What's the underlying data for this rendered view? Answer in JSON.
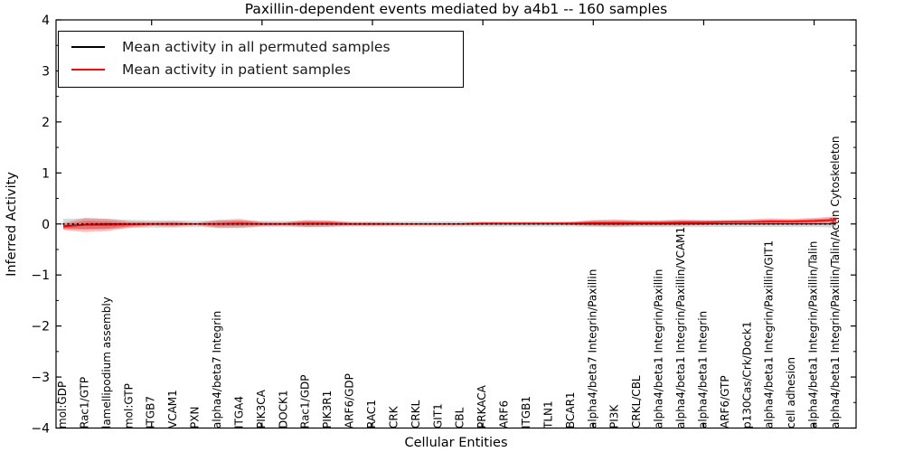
{
  "figure": {
    "title": "Paxillin-dependent events mediated by a4b1 -- 160 samples",
    "xlabel": "Cellular Entities",
    "ylabel": "Inferred Activity"
  },
  "legend": {
    "items": [
      {
        "label": "Mean activity in all permuted samples",
        "color": "#000000"
      },
      {
        "label": "Mean activity in patient samples",
        "color": "#ff0000"
      }
    ]
  },
  "chart_data": {
    "type": "line",
    "title": "Paxillin-dependent events mediated by a4b1 -- 160 samples",
    "xlabel": "Cellular Entities",
    "ylabel": "Inferred Activity",
    "ylim": [
      -4,
      4
    ],
    "grid": false,
    "legend_position": "upper left",
    "y_major_ticks": [
      4,
      3,
      2,
      1,
      0,
      -1,
      -2,
      -3,
      -4
    ],
    "y_minor_step": 0.5,
    "x_major_tick_values": [
      5,
      10,
      15,
      20,
      25,
      30,
      35
    ],
    "categories": [
      "mol:GDP",
      "Rac1/GTP",
      "lamellipodium assembly",
      "mol:GTP",
      "ITGB7",
      "VCAM1",
      "PXN",
      "alpha4/beta7 Integrin",
      "ITGA4",
      "PIK3CA",
      "DOCK1",
      "Rac1/GDP",
      "PIK3R1",
      "ARF6/GDP",
      "RAC1",
      "CRK",
      "CRKL",
      "GIT1",
      "CBL",
      "PRKACA",
      "ARF6",
      "ITGB1",
      "TLN1",
      "BCAR1",
      "alpha4/beta7 Integrin/Paxillin",
      "PI3K",
      "CRKL/CBL",
      "alpha4/beta1 Integrin/Paxillin",
      "alpha4/beta1 Integrin/Paxillin/VCAM1",
      "alpha4/beta1 Integrin",
      "ARF6/GTP",
      "p130Cas/Crk/Dock1",
      "alpha4/beta1 Integrin/Paxillin/GIT1",
      "cell adhesion",
      "alpha4/beta1 Integrin/Paxillin/Talin",
      "alpha4/beta1 Integrin/Paxillin/Talin/Actin Cytoskeleton"
    ],
    "series": [
      {
        "name": "Mean activity in all permuted samples",
        "color": "#000000",
        "style": "solid",
        "width": 1.1,
        "values": [
          -0.04,
          -0.01,
          0,
          0,
          0,
          0,
          0,
          0,
          0,
          0,
          0,
          0,
          0,
          0,
          0,
          0,
          0,
          0,
          0,
          0,
          0,
          0,
          0,
          0,
          0,
          0,
          0,
          0,
          0,
          0,
          0,
          0,
          0,
          0,
          0,
          0
        ]
      },
      {
        "name": "Mean activity in patient samples",
        "color": "#ff0000",
        "style": "solid",
        "width": 1.6,
        "values": [
          -0.05,
          -0.02,
          -0.02,
          -0.01,
          0,
          0,
          0,
          0,
          0.01,
          0,
          0,
          0.01,
          0.01,
          0,
          0,
          0,
          0,
          0,
          0,
          0.01,
          0.01,
          0.01,
          0.01,
          0.01,
          0.02,
          0.02,
          0.02,
          0.02,
          0.03,
          0.03,
          0.04,
          0.04,
          0.05,
          0.05,
          0.06,
          0.08
        ]
      },
      {
        "name": "zero-reference",
        "color": "#000000",
        "style": "dotted",
        "width": 1.7,
        "values": [
          0,
          0,
          0,
          0,
          0,
          0,
          0,
          0,
          0,
          0,
          0,
          0,
          0,
          0,
          0,
          0,
          0,
          0,
          0,
          0,
          0,
          0,
          0,
          0,
          0,
          0,
          0,
          0,
          0,
          0,
          0,
          0,
          0,
          0,
          0,
          0
        ]
      }
    ],
    "bands": [
      {
        "name": "permuted-samples-range",
        "color": "#9a9a9a",
        "opacity": 0.38,
        "center": [
          0,
          0,
          0,
          0,
          0,
          0,
          0,
          0,
          0,
          0,
          0,
          0,
          0,
          0,
          0,
          0,
          0,
          0,
          0,
          0,
          0,
          0,
          0,
          0,
          0,
          0,
          0,
          0,
          0,
          0,
          0,
          0,
          0,
          0,
          0,
          0
        ],
        "halfwidth": [
          0.1,
          0.11,
          0.1,
          0.08,
          0.07,
          0.07,
          0.06,
          0.07,
          0.07,
          0.06,
          0.06,
          0.06,
          0.06,
          0.05,
          0.05,
          0.05,
          0.05,
          0.05,
          0.05,
          0.05,
          0.05,
          0.05,
          0.05,
          0.05,
          0.06,
          0.06,
          0.06,
          0.06,
          0.06,
          0.06,
          0.06,
          0.06,
          0.06,
          0.06,
          0.06,
          0.07
        ]
      },
      {
        "name": "patient-samples-spread-outer",
        "color": "#ee2c2c",
        "opacity": 0.3,
        "center": [
          -0.05,
          -0.02,
          -0.02,
          -0.01,
          0,
          0,
          0,
          0,
          0.01,
          0,
          0,
          0.01,
          0.01,
          0,
          0,
          0,
          0,
          0,
          0,
          0.01,
          0.01,
          0.01,
          0.01,
          0.01,
          0.02,
          0.02,
          0.02,
          0.02,
          0.03,
          0.03,
          0.04,
          0.04,
          0.05,
          0.05,
          0.06,
          0.08
        ],
        "halfwidth": [
          0.07,
          0.14,
          0.12,
          0.06,
          0.04,
          0.05,
          0.02,
          0.08,
          0.09,
          0.04,
          0.03,
          0.07,
          0.06,
          0.03,
          0.03,
          0.025,
          0.02,
          0.02,
          0.02,
          0.025,
          0.02,
          0.02,
          0.02,
          0.03,
          0.06,
          0.07,
          0.05,
          0.05,
          0.06,
          0.05,
          0.04,
          0.05,
          0.06,
          0.05,
          0.06,
          0.07
        ]
      },
      {
        "name": "patient-samples-spread-inner",
        "color": "#ee2c2c",
        "opacity": 0.42,
        "center": [
          -0.05,
          -0.02,
          -0.02,
          -0.01,
          0,
          0,
          0,
          0,
          0.01,
          0,
          0,
          0.01,
          0.01,
          0,
          0,
          0,
          0,
          0,
          0,
          0.01,
          0.01,
          0.01,
          0.01,
          0.01,
          0.02,
          0.02,
          0.02,
          0.02,
          0.03,
          0.03,
          0.04,
          0.04,
          0.05,
          0.05,
          0.06,
          0.08
        ],
        "halfwidth": [
          0.04,
          0.08,
          0.07,
          0.035,
          0.025,
          0.03,
          0.012,
          0.045,
          0.05,
          0.025,
          0.02,
          0.04,
          0.035,
          0.02,
          0.02,
          0.015,
          0.012,
          0.012,
          0.012,
          0.015,
          0.012,
          0.012,
          0.012,
          0.02,
          0.035,
          0.04,
          0.03,
          0.03,
          0.035,
          0.03,
          0.025,
          0.03,
          0.035,
          0.03,
          0.035,
          0.04
        ]
      }
    ]
  }
}
